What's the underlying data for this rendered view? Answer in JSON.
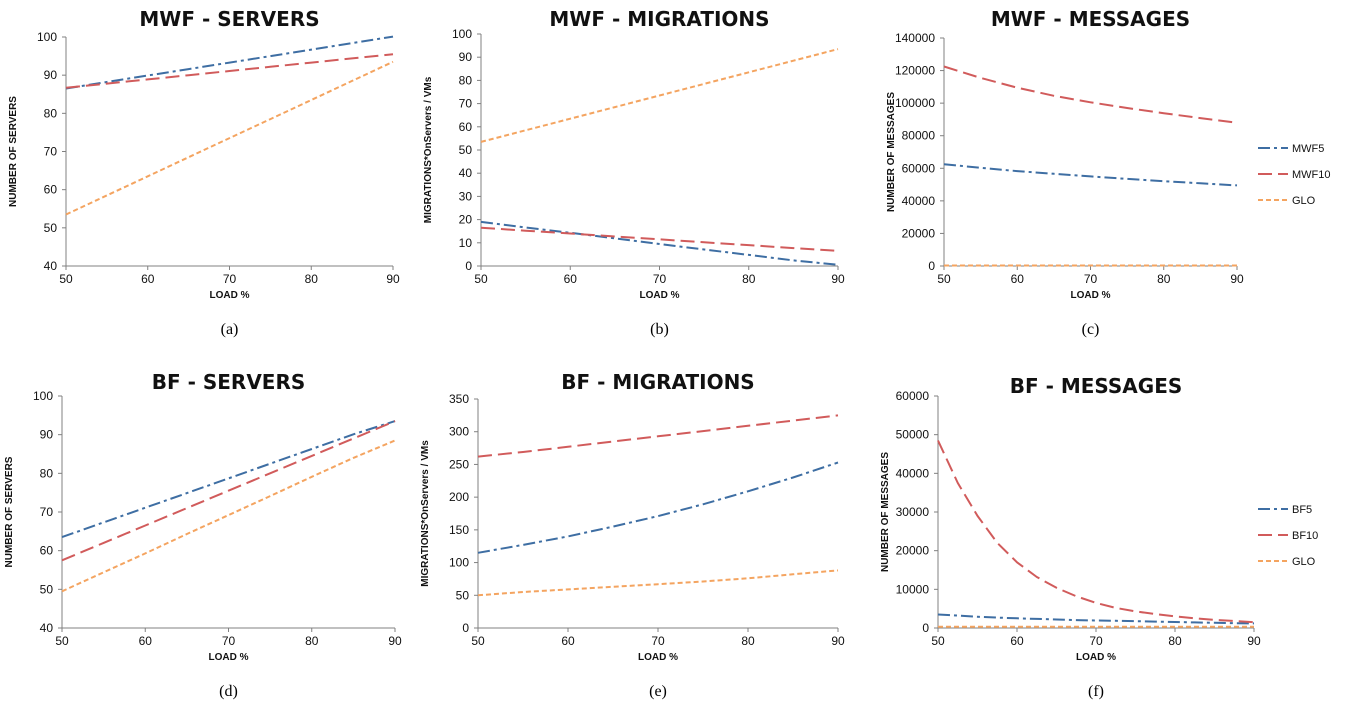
{
  "styles": {
    "MWF5": {
      "color": "#3e6ea3",
      "dash": "12 4 3 4"
    },
    "MWF10": {
      "color": "#d15b5b",
      "dash": "14 6"
    },
    "GLO": {
      "color": "#f4a460",
      "dash": "5 3"
    },
    "BF5": {
      "color": "#3e6ea3",
      "dash": "12 4 3 4"
    },
    "BF10": {
      "color": "#d15b5b",
      "dash": "14 6"
    }
  },
  "chart_data": [
    {
      "type": "line",
      "title": "MWF - SERVERS",
      "xlabel": "LOAD %",
      "ylabel": "NUMBER OF SERVERS",
      "caption": "(a)",
      "xlim": [
        50,
        90
      ],
      "ylim": [
        40,
        100
      ],
      "xticks": [
        50,
        60,
        70,
        80,
        90
      ],
      "yticks": [
        40,
        50,
        60,
        70,
        80,
        90,
        100
      ],
      "x": [
        50,
        55,
        60,
        65,
        70,
        75,
        80,
        85,
        90
      ],
      "series": [
        {
          "style": "MWF5",
          "values": [
            86.5,
            88.2,
            89.9,
            91.6,
            93.3,
            95.0,
            96.7,
            98.4,
            100.1
          ]
        },
        {
          "style": "MWF10",
          "values": [
            86.7,
            87.8,
            88.9,
            90.0,
            91.1,
            92.2,
            93.3,
            94.4,
            95.5
          ]
        },
        {
          "style": "GLO",
          "values": [
            53.5,
            58.5,
            63.5,
            68.5,
            73.5,
            78.5,
            83.5,
            88.5,
            93.5
          ]
        }
      ]
    },
    {
      "type": "line",
      "title": "MWF - MIGRATIONS",
      "xlabel": "LOAD %",
      "ylabel": "MIGRATIONS*OnServers / VMs",
      "caption": "(b)",
      "xlim": [
        50,
        90
      ],
      "ylim": [
        0,
        100
      ],
      "xticks": [
        50,
        60,
        70,
        80,
        90
      ],
      "yticks": [
        0,
        10,
        20,
        30,
        40,
        50,
        60,
        70,
        80,
        90,
        100
      ],
      "x": [
        50,
        55,
        60,
        65,
        70,
        75,
        80,
        85,
        90
      ],
      "series": [
        {
          "style": "MWF5",
          "values": [
            19,
            16.6,
            14.3,
            11.9,
            9.5,
            7.1,
            4.8,
            2.4,
            0.5
          ]
        },
        {
          "style": "MWF10",
          "values": [
            16.5,
            15.2,
            14.0,
            12.7,
            11.5,
            10.2,
            9.0,
            7.7,
            6.5
          ]
        },
        {
          "style": "GLO",
          "values": [
            53.5,
            58.5,
            63.5,
            68.5,
            73.5,
            78.5,
            83.5,
            88.5,
            93.5
          ]
        }
      ]
    },
    {
      "type": "line",
      "title": "MWF - MESSAGES",
      "xlabel": "LOAD %",
      "ylabel": "NUMBER OF MESSAGES",
      "caption": "(c)",
      "legend": "right",
      "xlim": [
        50,
        90
      ],
      "ylim": [
        0,
        140000
      ],
      "xticks": [
        50,
        60,
        70,
        80,
        90
      ],
      "yticks": [
        0,
        20000,
        40000,
        60000,
        80000,
        100000,
        120000,
        140000
      ],
      "x": [
        50,
        55,
        60,
        65,
        70,
        75,
        80,
        85,
        90
      ],
      "series": [
        {
          "name": "MWF5",
          "style": "MWF5",
          "values": [
            62500,
            60300,
            58300,
            56600,
            55000,
            53500,
            52100,
            50800,
            49500
          ]
        },
        {
          "name": "MWF10",
          "style": "MWF10",
          "values": [
            122500,
            115500,
            109500,
            104500,
            100500,
            97000,
            93800,
            90800,
            88000
          ]
        },
        {
          "name": "GLO",
          "style": "GLO",
          "values": [
            300,
            300,
            300,
            300,
            300,
            300,
            300,
            300,
            300
          ]
        }
      ]
    },
    {
      "type": "line",
      "title": "BF - SERVERS",
      "xlabel": "LOAD %",
      "ylabel": "NUMBER OF SERVERS",
      "caption": "(d)",
      "xlim": [
        50,
        90
      ],
      "ylim": [
        40,
        100
      ],
      "xticks": [
        50,
        60,
        70,
        80,
        90
      ],
      "yticks": [
        40,
        50,
        60,
        70,
        80,
        90,
        100
      ],
      "x": [
        50,
        55,
        60,
        65,
        70,
        75,
        80,
        85,
        90
      ],
      "series": [
        {
          "style": "BF5",
          "values": [
            63.5,
            67.3,
            71.1,
            74.9,
            78.7,
            82.5,
            86.3,
            90.1,
            93.5
          ]
        },
        {
          "style": "BF10",
          "values": [
            57.5,
            62.0,
            66.5,
            71.0,
            75.5,
            80.0,
            84.5,
            89.0,
            93.5
          ]
        },
        {
          "style": "GLO",
          "values": [
            49.5,
            54.4,
            59.3,
            64.3,
            69.2,
            74.1,
            79.1,
            84.0,
            88.5
          ]
        }
      ]
    },
    {
      "type": "line",
      "title": "BF - MIGRATIONS",
      "xlabel": "LOAD %",
      "ylabel": "MIGRATIONS*OnServers / VMs",
      "caption": "(e)",
      "xlim": [
        50,
        90
      ],
      "ylim": [
        0,
        350
      ],
      "xticks": [
        50,
        60,
        70,
        80,
        90
      ],
      "yticks": [
        0,
        50,
        100,
        150,
        200,
        250,
        300,
        350
      ],
      "x": [
        50,
        55,
        60,
        65,
        70,
        75,
        80,
        85,
        90
      ],
      "series": [
        {
          "style": "BF5",
          "values": [
            115,
            127,
            140,
            155,
            171,
            189,
            209,
            230,
            253
          ]
        },
        {
          "style": "BF10",
          "values": [
            262,
            269,
            277,
            285,
            293,
            301,
            309,
            317,
            325
          ]
        },
        {
          "style": "GLO",
          "values": [
            50,
            55,
            59,
            63,
            67,
            71,
            76,
            82,
            88
          ]
        }
      ]
    },
    {
      "type": "line",
      "title": "BF - MESSAGES",
      "xlabel": "LOAD %",
      "ylabel": "NUMBER OF MESSAGES",
      "caption": "(f)",
      "legend": "right",
      "xlim": [
        50,
        90
      ],
      "ylim": [
        0,
        60000
      ],
      "xticks": [
        50,
        60,
        70,
        80,
        90
      ],
      "yticks": [
        0,
        10000,
        20000,
        30000,
        40000,
        50000,
        60000
      ],
      "x": [
        50,
        52.5,
        55,
        57.5,
        60,
        62.5,
        65,
        67.5,
        70,
        72.5,
        75,
        77.5,
        80,
        82.5,
        85,
        87.5,
        90
      ],
      "series": [
        {
          "name": "BF5",
          "style": "BF5",
          "values": [
            3500,
            3200,
            2900,
            2700,
            2500,
            2350,
            2200,
            2050,
            1950,
            1850,
            1750,
            1650,
            1550,
            1450,
            1350,
            1250,
            1200
          ]
        },
        {
          "name": "BF10",
          "style": "BF10",
          "values": [
            48500,
            37500,
            29000,
            22000,
            17000,
            13200,
            10400,
            8200,
            6500,
            5200,
            4300,
            3600,
            3000,
            2500,
            2100,
            1800,
            1500
          ]
        },
        {
          "name": "GLO",
          "style": "GLO",
          "values": [
            300,
            300,
            300,
            300,
            300,
            300,
            300,
            300,
            300,
            300,
            300,
            300,
            300,
            300,
            300,
            300,
            300
          ]
        }
      ]
    }
  ]
}
